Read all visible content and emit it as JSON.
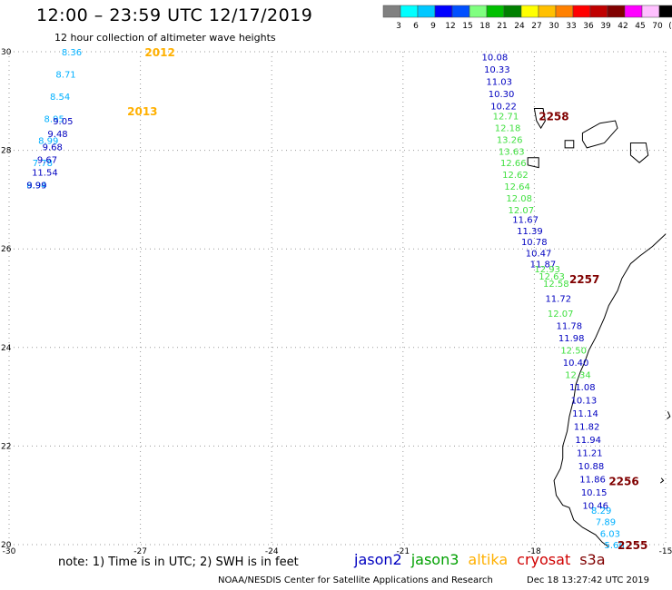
{
  "header": {
    "title": "12:00 – 23:59 UTC 12/17/2019",
    "subtitle": "12 hour collection of altimeter wave heights"
  },
  "colorbar": {
    "colors": [
      "#808080",
      "#00ffff",
      "#00c8ff",
      "#0000ff",
      "#0050ff",
      "#80ff80",
      "#00c000",
      "#008000",
      "#ffff00",
      "#ffc000",
      "#ff8000",
      "#ff0000",
      "#c00000",
      "#800000",
      "#ff00ff",
      "#ffc0ff",
      "#000000"
    ],
    "labels": [
      "3",
      "6",
      "9",
      "12",
      "15",
      "18",
      "21",
      "24",
      "27",
      "30",
      "33",
      "36",
      "39",
      "42",
      "45",
      "70",
      "(ft)"
    ]
  },
  "axes": {
    "x_ticks": [
      "-30",
      "-27",
      "-24",
      "-21",
      "-18",
      "-15"
    ],
    "y_ticks": [
      "30",
      "28",
      "26",
      "24",
      "22",
      "20"
    ]
  },
  "colors": {
    "jason2": "#0000c0",
    "jason3": "#40e040",
    "altika": "#ffb000",
    "cryosat": "#d00000",
    "s3a": "#800000",
    "altika_light": "#00b0ff"
  },
  "track_labels": [
    {
      "text": "2012",
      "color": "#ffb000",
      "lon": -26.9,
      "lat": 30
    },
    {
      "text": "2013",
      "color": "#ffb000",
      "lon": -27.3,
      "lat": 28.8
    },
    {
      "text": "2258",
      "color": "#800000",
      "lon": -17.9,
      "lat": 28.7
    },
    {
      "text": "2257",
      "color": "#800000",
      "lon": -17.2,
      "lat": 25.4
    },
    {
      "text": "2256",
      "color": "#800000",
      "lon": -16.3,
      "lat": 21.3
    },
    {
      "text": "2255",
      "color": "#800000",
      "lon": -16.1,
      "lat": 20
    }
  ],
  "tracks": [
    {
      "color": "#00b0ff",
      "start": {
        "lon": -28.8,
        "lat": 30
      },
      "end": {
        "lon": -29.6,
        "lat": 27.3
      },
      "values": [
        "8.36",
        "8.71",
        "8.54",
        "8.95",
        "8.99",
        "7.78",
        "8.94"
      ]
    },
    {
      "color": "#0000c0",
      "start": {
        "lon": -29.0,
        "lat": 28.6
      },
      "end": {
        "lon": -29.6,
        "lat": 27.3
      },
      "values": [
        "9.05",
        "9.48",
        "9.68",
        "9.67",
        "11.54",
        "9.99"
      ]
    },
    {
      "color": "#0000c0",
      "start": {
        "lon": -19.2,
        "lat": 29.9
      },
      "end": {
        "lon": -19.0,
        "lat": 28.9
      },
      "values": [
        "10.08",
        "10.33",
        "11.03",
        "10.30",
        "10.22"
      ]
    },
    {
      "color": "#40e040",
      "start": {
        "lon": -18.95,
        "lat": 28.7
      },
      "end": {
        "lon": -18.6,
        "lat": 26.8
      },
      "values": [
        "12.71",
        "12.18",
        "13.26",
        "13.63",
        "12.66",
        "12.62",
        "12.64",
        "12.08",
        "12.07"
      ]
    },
    {
      "color": "#0000c0",
      "start": {
        "lon": -18.5,
        "lat": 26.6
      },
      "end": {
        "lon": -18.1,
        "lat": 25.7
      },
      "values": [
        "11.67",
        "11.39",
        "10.78",
        "10.47",
        "11.87"
      ]
    },
    {
      "color": "#40e040",
      "start": {
        "lon": -18.0,
        "lat": 25.6
      },
      "end": {
        "lon": -17.8,
        "lat": 25.3
      },
      "values": [
        "12.93",
        "12.63",
        "12.58"
      ]
    },
    {
      "color": "#0000c0",
      "start": {
        "lon": -17.75,
        "lat": 25.0
      },
      "end": {
        "lon": -17.75,
        "lat": 24.8
      },
      "values": [
        "11.72"
      ]
    },
    {
      "color": "#40e040",
      "start": {
        "lon": -17.7,
        "lat": 24.7
      },
      "end": {
        "lon": -17.7,
        "lat": 24.7
      },
      "values": [
        "12.07"
      ]
    },
    {
      "color": "#0000c0",
      "start": {
        "lon": -17.5,
        "lat": 24.45
      },
      "end": {
        "lon": -17.45,
        "lat": 24.2
      },
      "values": [
        "11.78",
        "11.98"
      ]
    },
    {
      "color": "#40e040",
      "start": {
        "lon": -17.4,
        "lat": 23.95
      },
      "end": {
        "lon": -17.4,
        "lat": 23.95
      },
      "values": [
        "12.50"
      ]
    },
    {
      "color": "#0000c0",
      "start": {
        "lon": -17.35,
        "lat": 23.7
      },
      "end": {
        "lon": -17.35,
        "lat": 23.7
      },
      "values": [
        "10.40"
      ]
    },
    {
      "color": "#40e040",
      "start": {
        "lon": -17.3,
        "lat": 23.45
      },
      "end": {
        "lon": -17.3,
        "lat": 23.45
      },
      "values": [
        "12.34"
      ]
    },
    {
      "color": "#0000c0",
      "start": {
        "lon": -17.2,
        "lat": 23.2
      },
      "end": {
        "lon": -16.9,
        "lat": 20.8
      },
      "values": [
        "11.08",
        "10.13",
        "11.14",
        "11.82",
        "11.94",
        "11.21",
        "10.88",
        "11.86",
        "10.15",
        "10.46"
      ]
    },
    {
      "color": "#00b0ff",
      "start": {
        "lon": -16.7,
        "lat": 20.7
      },
      "end": {
        "lon": -16.4,
        "lat": 20.0
      },
      "values": [
        "8.29",
        "7.89",
        "6.03",
        "5.66"
      ]
    }
  ],
  "legend": [
    {
      "text": "jason2",
      "color": "#0000c0"
    },
    {
      "text": "jason3",
      "color": "#00a000"
    },
    {
      "text": "altika",
      "color": "#ffb000"
    },
    {
      "text": "cryosat",
      "color": "#d00000"
    },
    {
      "text": "s3a",
      "color": "#800000"
    }
  ],
  "footer": {
    "note": "note: 1) Time is in UTC; 2) SWH is in feet",
    "credits": "NOAA/NESDIS Center for Satellite Applications and Research",
    "timestamp": "Dec 18 13:27:42 UTC 2019"
  }
}
